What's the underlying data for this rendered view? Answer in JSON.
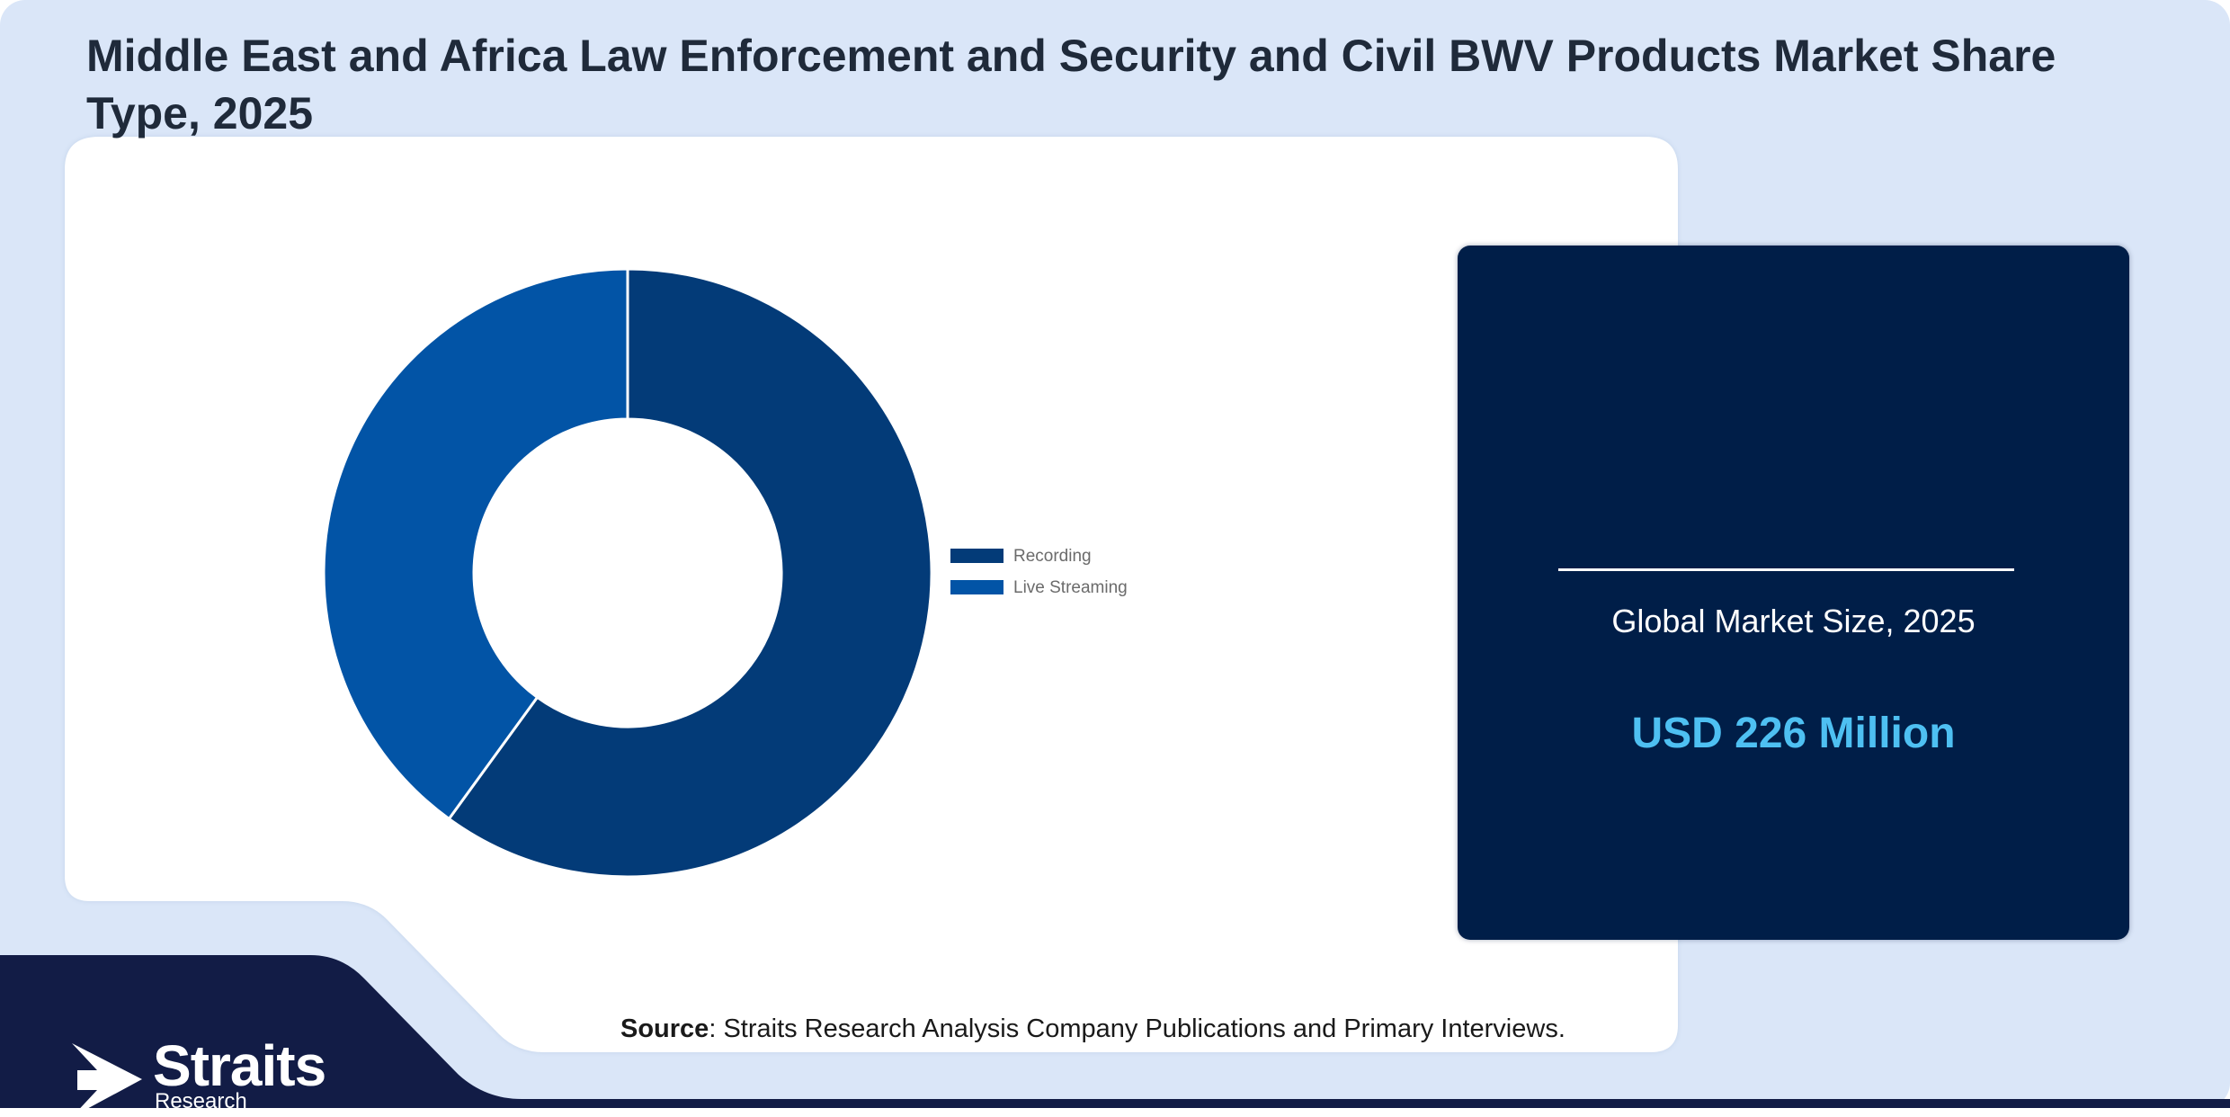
{
  "title": "Middle East and Africa Law Enforcement and Security and Civil BWV Products Market Share Type, 2025",
  "chart_data": {
    "type": "pie",
    "variant": "donut",
    "title": "",
    "categories": [
      "Recording",
      "Live Streaming"
    ],
    "values": [
      60,
      40
    ],
    "colors": [
      "#033b78",
      "#0254a6"
    ],
    "legend_position": "right"
  },
  "info_card": {
    "market_value": "USD 226 Million",
    "label": "Global Market Size, 2025"
  },
  "source": {
    "label": "Source",
    "text": ": Straits Research Analysis Company Publications and Primary Interviews."
  },
  "logo": {
    "name": "Straits",
    "sub": "Research"
  },
  "colors": {
    "page_background": "#dae6f8",
    "panel": "#ffffff",
    "footer": "#121c46",
    "card": "#001e48",
    "accent": "#4ec0f2"
  }
}
